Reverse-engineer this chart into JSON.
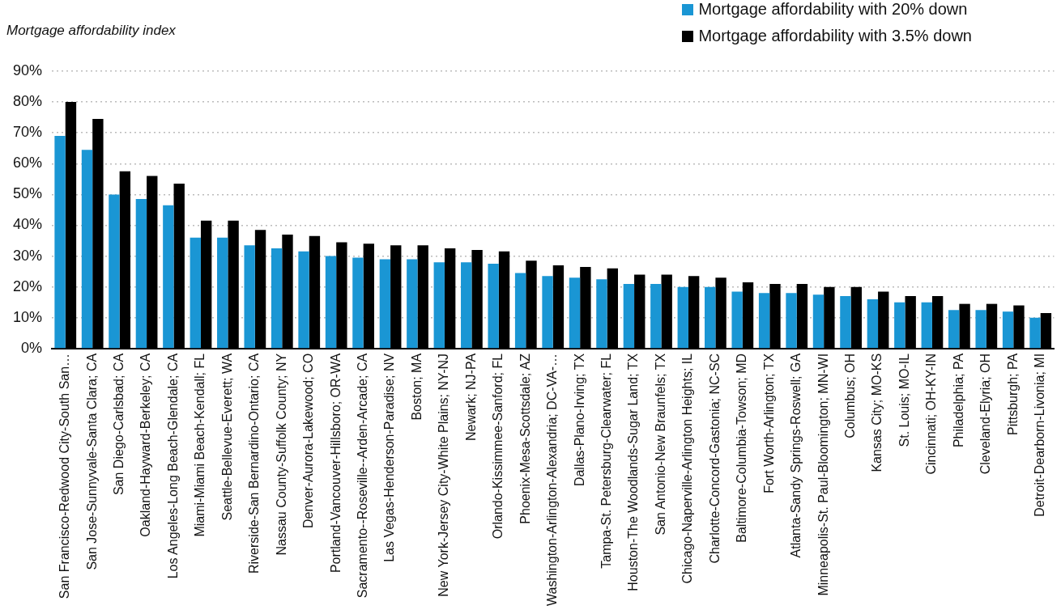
{
  "chart_data": {
    "type": "bar",
    "subtitle": "Mortgage affordability index",
    "categories": [
      "San Francisco-Redwood City-South San…",
      "San Jose-Sunnyvale-Santa Clara; CA",
      "San Diego-Carlsbad; CA",
      "Oakland-Hayward-Berkeley; CA",
      "Los Angeles-Long Beach-Glendale; CA",
      "Miami-Miami Beach-Kendall; FL",
      "Seattle-Bellevue-Everett; WA",
      "Riverside-San Bernardino-Ontario; CA",
      "Nassau County-Suffolk County; NY",
      "Denver-Aurora-Lakewood; CO",
      "Portland-Vancouver-Hillsboro; OR-WA",
      "Sacramento--Roseville--Arden-Arcade; CA",
      "Las Vegas-Henderson-Paradise; NV",
      "Boston; MA",
      "New York-Jersey City-White Plains; NY-NJ",
      "Newark; NJ-PA",
      "Orlando-Kissimmee-Sanford; FL",
      "Phoenix-Mesa-Scottsdale; AZ",
      "Washington-Arlington-Alexandria; DC-VA-…",
      "Dallas-Plano-Irving; TX",
      "Tampa-St. Petersburg-Clearwater; FL",
      "Houston-The Woodlands-Sugar Land; TX",
      "San Antonio-New Braunfels; TX",
      "Chicago-Naperville-Arlington Heights; IL",
      "Charlotte-Concord-Gastonia; NC-SC",
      "Baltimore-Columbia-Towson; MD",
      "Fort Worth-Arlington; TX",
      "Atlanta-Sandy Springs-Roswell; GA",
      "Minneapolis-St. Paul-Bloomington; MN-WI",
      "Columbus; OH",
      "Kansas City; MO-KS",
      "St. Louis; MO-IL",
      "Cincinnati; OH-KY-IN",
      "Philadelphia; PA",
      "Cleveland-Elyria; OH",
      "Pittsburgh; PA",
      "Detroit-Dearborn-Livonia; MI"
    ],
    "series": [
      {
        "name": "Mortgage affordability with 20% down",
        "color": "#1a96d4",
        "values": [
          69,
          64.5,
          50,
          48.5,
          46.5,
          36,
          36,
          33.5,
          32.5,
          31.5,
          30,
          29.5,
          29,
          29,
          28,
          28,
          27.5,
          24.5,
          23.5,
          23,
          22.5,
          21,
          21,
          20,
          20,
          18.5,
          18,
          18,
          17.5,
          17,
          16,
          15,
          15,
          12.5,
          12.5,
          12,
          10
        ]
      },
      {
        "name": "Mortgage affordability with 3.5% down",
        "color": "#000000",
        "values": [
          80,
          74.5,
          57.5,
          56,
          53.5,
          41.5,
          41.5,
          38.5,
          37,
          36.5,
          34.5,
          34,
          33.5,
          33.5,
          32.5,
          32,
          31.5,
          28.5,
          27,
          26.5,
          26,
          24,
          24,
          23.5,
          23,
          21.5,
          21,
          21,
          20,
          20,
          18.5,
          17,
          17,
          14.5,
          14.5,
          14,
          11.5
        ]
      }
    ],
    "ylim": [
      0,
      90
    ],
    "yticks": [
      {
        "value": 0,
        "label": "0%"
      },
      {
        "value": 10,
        "label": "10%"
      },
      {
        "value": 20,
        "label": "20%"
      },
      {
        "value": 30,
        "label": "30%"
      },
      {
        "value": 40,
        "label": "40%"
      },
      {
        "value": 50,
        "label": "50%"
      },
      {
        "value": 60,
        "label": "60%"
      },
      {
        "value": 70,
        "label": "70%"
      },
      {
        "value": 80,
        "label": "80%"
      },
      {
        "value": 90,
        "label": "90%"
      }
    ],
    "grid": "y",
    "legend": "top right"
  }
}
